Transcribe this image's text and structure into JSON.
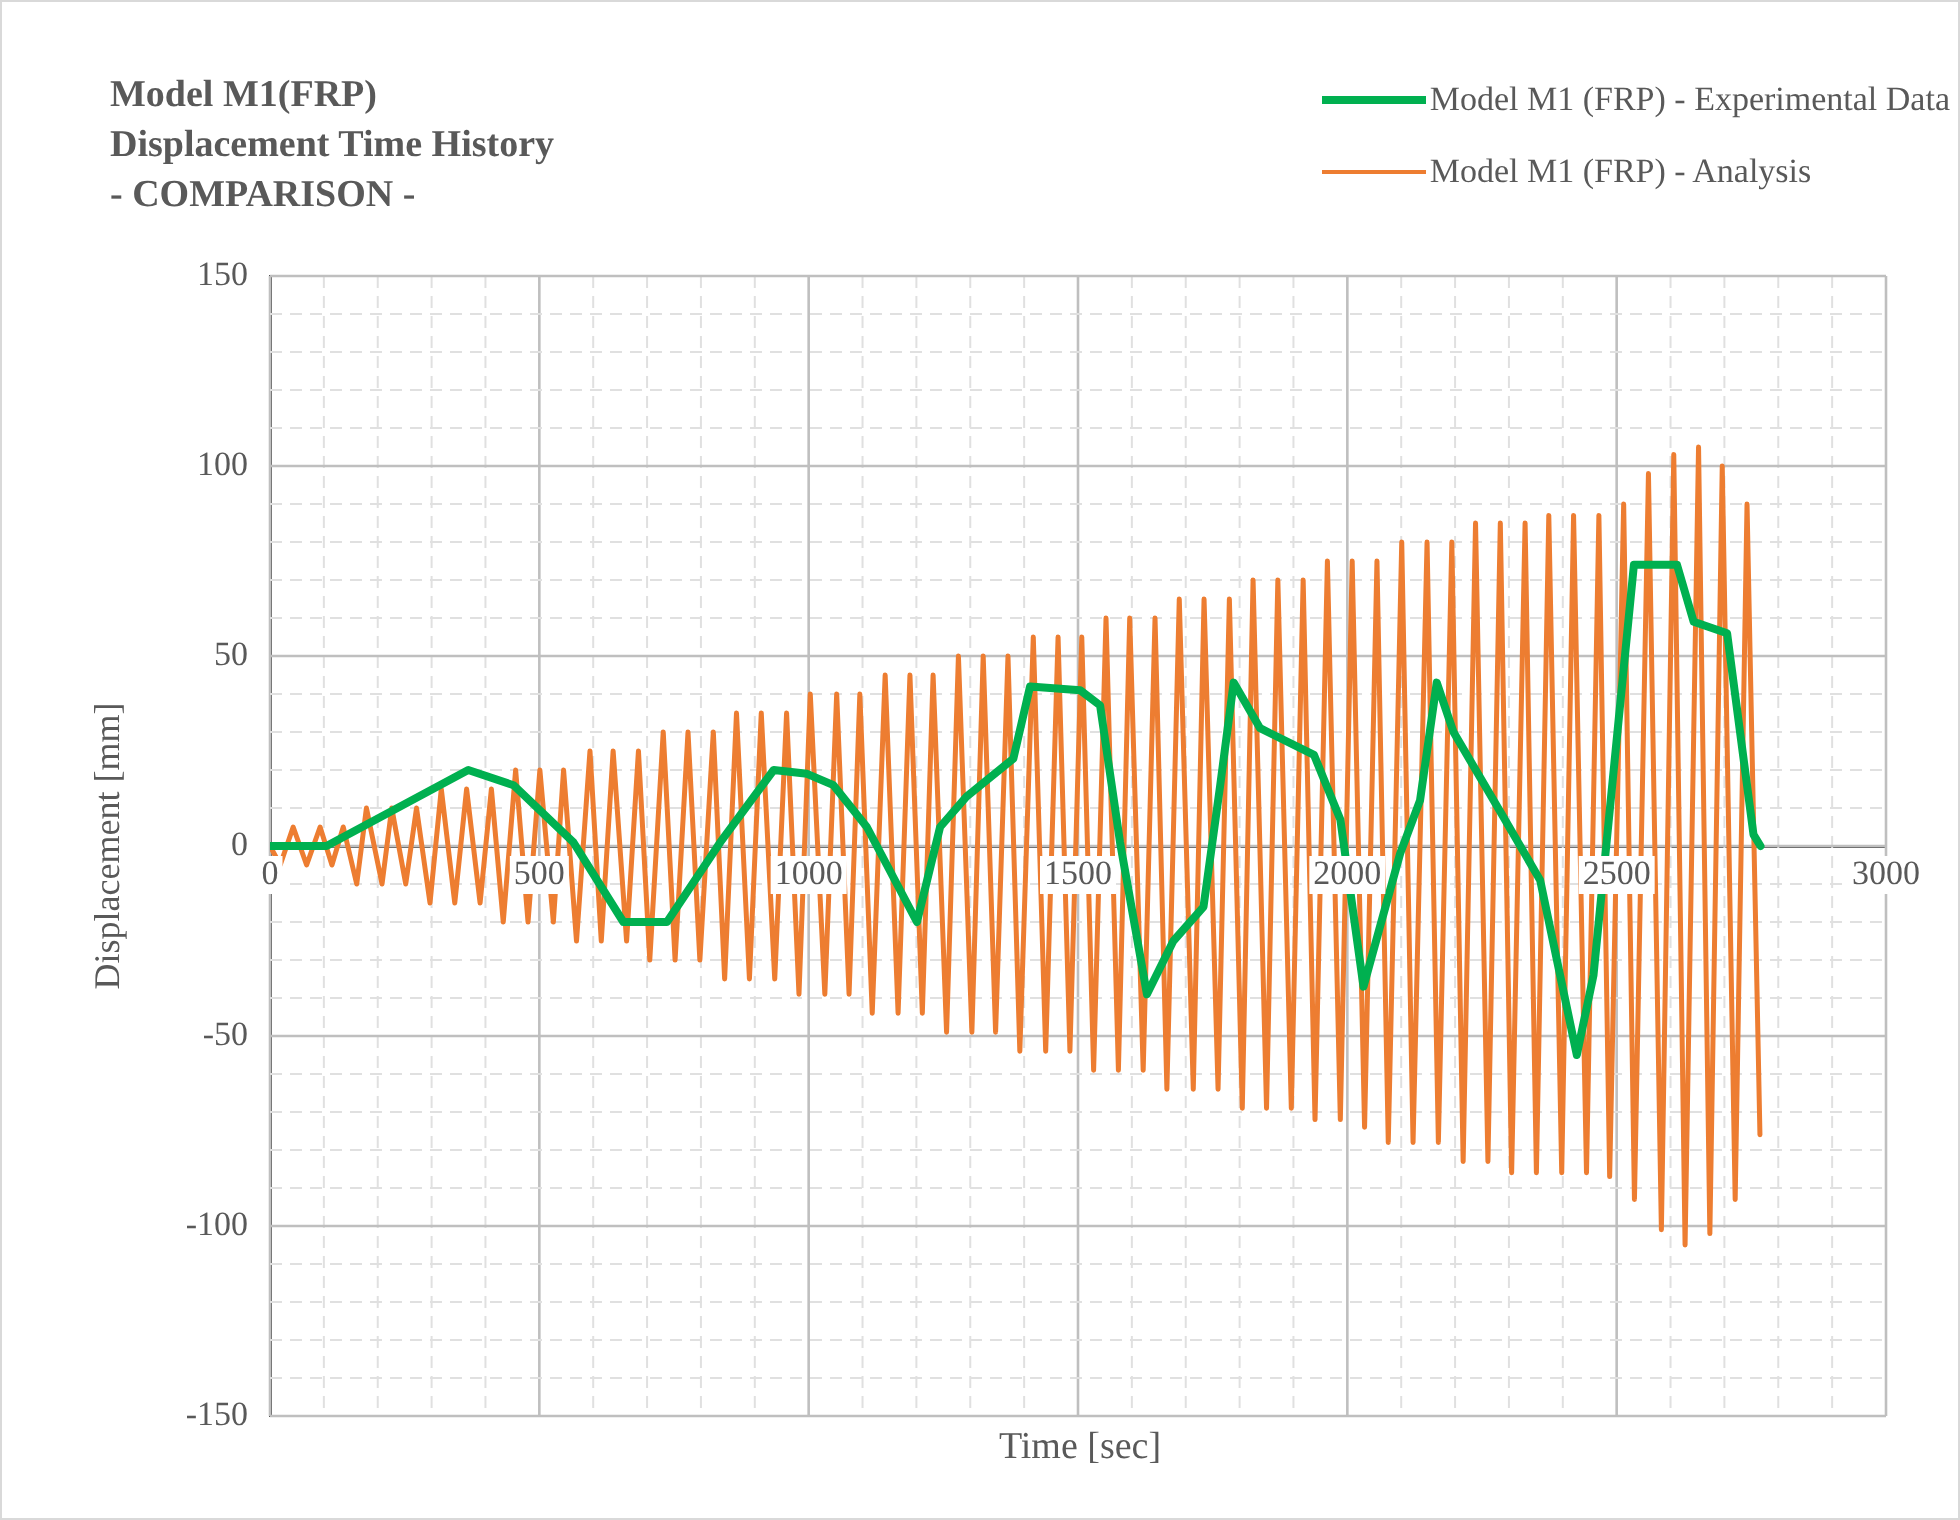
{
  "chart_data": {
    "type": "line",
    "title": "Model M1(FRP)\nDisplacement Time History\n- COMPARISON -",
    "xlabel": "Time [sec]",
    "ylabel": "Displacement [mm]",
    "xlim": [
      0,
      3000
    ],
    "ylim": [
      -150,
      150
    ],
    "xticks": [
      0,
      {
        "value": 100,
        "label": null
      },
      {
        "value": 200,
        "label": null
      },
      {
        "value": 300,
        "label": null
      },
      {
        "value": 400,
        "label": null
      },
      500,
      {
        "value": 600,
        "label": null
      },
      {
        "value": 700,
        "label": null
      },
      {
        "value": 800,
        "label": null
      },
      {
        "value": 900,
        "label": null
      },
      1000,
      {
        "value": 1100,
        "label": null
      },
      {
        "value": 1200,
        "label": null
      },
      {
        "value": 1300,
        "label": null
      },
      {
        "value": 1400,
        "label": null
      },
      1500,
      {
        "value": 1600,
        "label": null
      },
      {
        "value": 1700,
        "label": null
      },
      {
        "value": 1800,
        "label": null
      },
      {
        "value": 1900,
        "label": null
      },
      2000,
      {
        "value": 2100,
        "label": null
      },
      {
        "value": 2200,
        "label": null
      },
      {
        "value": 2300,
        "label": null
      },
      {
        "value": 2400,
        "label": null
      },
      2500,
      {
        "value": 2600,
        "label": null
      },
      {
        "value": 2700,
        "label": null
      },
      {
        "value": 2800,
        "label": null
      },
      {
        "value": 2900,
        "label": null
      },
      3000
    ],
    "yticks": [
      -150,
      {
        "value": -140,
        "label": null
      },
      {
        "value": -130,
        "label": null
      },
      {
        "value": -120,
        "label": null
      },
      {
        "value": -110,
        "label": null
      },
      -100,
      {
        "value": -90,
        "label": null
      },
      {
        "value": -80,
        "label": null
      },
      {
        "value": -70,
        "label": null
      },
      {
        "value": -60,
        "label": null
      },
      -50,
      {
        "value": -40,
        "label": null
      },
      {
        "value": -30,
        "label": null
      },
      {
        "value": -20,
        "label": null
      },
      {
        "value": -10,
        "label": null
      },
      0,
      {
        "value": 10,
        "label": null
      },
      {
        "value": 20,
        "label": null
      },
      {
        "value": 30,
        "label": null
      },
      {
        "value": 40,
        "label": null
      },
      50,
      {
        "value": 60,
        "label": null
      },
      {
        "value": 70,
        "label": null
      },
      {
        "value": 80,
        "label": null
      },
      {
        "value": 90,
        "label": null
      },
      100,
      {
        "value": 110,
        "label": null
      },
      {
        "value": 120,
        "label": null
      },
      {
        "value": 130,
        "label": null
      },
      {
        "value": 140,
        "label": null
      },
      150
    ],
    "grid": true,
    "legend": "top right",
    "marker": "none",
    "line_style": "solid",
    "series": [
      {
        "name": "Model M1 (FRP) - Experimental Data",
        "color": "#00b050",
        "x": [
          0,
          105,
          368,
          452,
          563,
          656,
          737,
          836,
          935,
          997,
          1046,
          1108,
          1201,
          1244,
          1293,
          1380,
          1411,
          1504,
          1541,
          1578,
          1628,
          1677,
          1733,
          1764,
          1789,
          1838,
          1938,
          1987,
          2030,
          2098,
          2135,
          2166,
          2197,
          2284,
          2358,
          2426,
          2457,
          2532,
          2612,
          2643,
          2705,
          2754,
          2767
        ],
        "values": [
          0,
          0,
          20,
          16,
          1,
          -20,
          -20,
          1,
          20,
          19,
          16,
          5,
          -20,
          5,
          13,
          23,
          42,
          41,
          37,
          1,
          -39,
          -25,
          -16,
          16,
          43,
          31,
          24,
          7,
          -37,
          -2,
          12,
          43,
          30,
          9,
          -9,
          -55,
          -34,
          74,
          74,
          59,
          56,
          3,
          0
        ]
      },
      {
        "name": "Model M1 (FRP) - Analysis",
        "color": "#ed7d31",
        "x": [
          0,
          19,
          43,
          68,
          93,
          115,
          136,
          161,
          179,
          208,
          226,
          252,
          272,
          297,
          318,
          343,
          365,
          390,
          411,
          433,
          456,
          479,
          501,
          526,
          545,
          569,
          594,
          615,
          637,
          662,
          684,
          705,
          730,
          752,
          776,
          798,
          823,
          844,
          866,
          890,
          912,
          937,
          959,
          982,
          1003,
          1030,
          1052,
          1075,
          1095,
          1118,
          1142,
          1166,
          1188,
          1211,
          1231,
          1256,
          1278,
          1303,
          1324,
          1347,
          1370,
          1392,
          1417,
          1440,
          1463,
          1485,
          1507,
          1529,
          1552,
          1575,
          1596,
          1621,
          1643,
          1665,
          1688,
          1714,
          1734,
          1760,
          1781,
          1805,
          1825,
          1850,
          1871,
          1896,
          1918,
          1940,
          1963,
          1987,
          2009,
          2032,
          2055,
          2076,
          2101,
          2122,
          2148,
          2169,
          2194,
          2215,
          2238,
          2261,
          2284,
          2305,
          2330,
          2351,
          2374,
          2398,
          2420,
          2444,
          2467,
          2487,
          2513,
          2533,
          2559,
          2583,
          2606,
          2627,
          2652,
          2673,
          2696,
          2720,
          2742,
          2766
        ],
        "values": [
          0,
          -5,
          5,
          -5,
          5,
          -5,
          5,
          -10,
          10,
          -10,
          10,
          -10,
          10,
          -15,
          15,
          -15,
          15,
          -15,
          15,
          -20,
          20,
          -20,
          20,
          -20,
          20,
          -25,
          25,
          -25,
          25,
          -25,
          25,
          -30,
          30,
          -30,
          30,
          -30,
          30,
          -35,
          35,
          -35,
          35,
          -35,
          35,
          -39,
          40,
          -39,
          40,
          -39,
          40,
          -44,
          45,
          -44,
          45,
          -44,
          45,
          -49,
          50,
          -49,
          50,
          -49,
          50,
          -54,
          55,
          -54,
          55,
          -54,
          55,
          -59,
          60,
          -59,
          60,
          -59,
          60,
          -64,
          65,
          -64,
          65,
          -64,
          65,
          -69,
          70,
          -69,
          70,
          -69,
          70,
          -72,
          75,
          -72,
          75,
          -74,
          75,
          -78,
          80,
          -78,
          80,
          -78,
          80,
          -83,
          85,
          -83,
          85,
          -86,
          85,
          -86,
          87,
          -86,
          87,
          -86,
          87,
          -87,
          90,
          -93,
          98,
          -101,
          103,
          -105,
          105,
          -102,
          100,
          -93,
          90,
          -76
        ]
      }
    ]
  }
}
